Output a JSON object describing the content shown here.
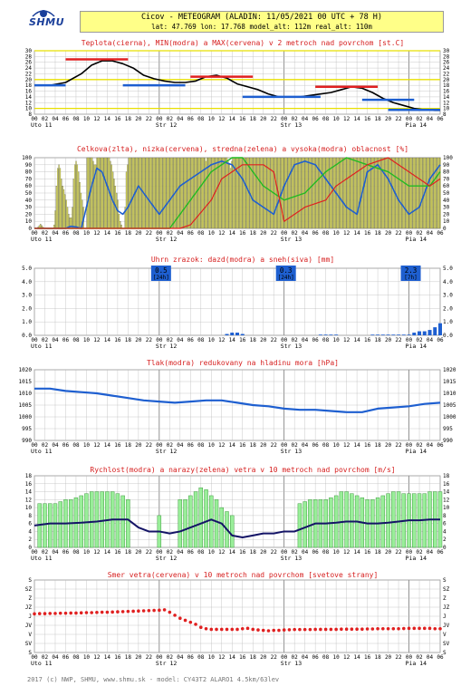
{
  "header": {
    "title": "Cicov - METEOGRAM (ALADIN: 11/05/2021 00 UTC + 78 H)",
    "subtitle": "lat: 47.769  lon: 17.768  model_alt: 112m  real_alt: 110m"
  },
  "logo_text": "SHMU",
  "footer": "2017 (c) NWP, SHMU, www.shmu.sk - model: CY43T2 ALARO1 4.5km/63lev",
  "time_axis": {
    "hour_labels": [
      "00",
      "02",
      "04",
      "06",
      "08",
      "10",
      "12",
      "14",
      "16",
      "18",
      "20",
      "22",
      "00",
      "02",
      "04",
      "06",
      "08",
      "10",
      "12",
      "14",
      "16",
      "18",
      "20",
      "22",
      "00",
      "02",
      "04",
      "06",
      "08",
      "10",
      "12",
      "14",
      "16",
      "18",
      "20",
      "22",
      "00",
      "02",
      "04",
      "06"
    ],
    "day_labels": [
      "Uto 11",
      "Str 12",
      "Str 13",
      "Pia 14"
    ],
    "day_start_hours": [
      0,
      24,
      48,
      72
    ]
  },
  "colors": {
    "blue": "#1e5fd0",
    "red": "#e02020",
    "green": "#22bb22",
    "yellow": "#e8e000",
    "bar_yellow": "#eeee55",
    "grid": "#bbbbbb",
    "navy": "#141466",
    "grey": "#888888"
  },
  "chart_data": [
    {
      "id": "temperature",
      "type": "line",
      "title": "Teplota(cierna), MIN(modra) a MAX(cervena) v 2 metroch nad povrchom [st.C]",
      "ylim": [
        8,
        30
      ],
      "yticks": [
        8,
        10,
        12,
        14,
        16,
        18,
        20,
        22,
        24,
        26,
        28,
        30
      ],
      "highlight_lines": [
        10,
        20,
        30
      ],
      "series": [
        {
          "role": "temperature",
          "x": [
            0,
            3,
            6,
            9,
            11,
            13,
            15,
            17,
            19,
            21,
            23,
            25,
            27,
            29,
            31,
            33,
            35,
            37,
            39,
            41,
            43,
            45,
            47,
            49,
            51,
            53,
            55,
            57,
            59,
            61,
            63,
            65,
            67,
            69,
            71,
            73,
            75,
            77,
            78
          ],
          "values": [
            18,
            18,
            19,
            22,
            25,
            26.5,
            26.5,
            25.5,
            24,
            21.5,
            20.3,
            19.5,
            19,
            19,
            19.5,
            21,
            21.5,
            20.5,
            18.5,
            17.5,
            16.5,
            15,
            14,
            14,
            14,
            14.5,
            15,
            15.5,
            16.5,
            17.5,
            17,
            15.5,
            13.5,
            12,
            11,
            10,
            9.5,
            9.3,
            9.3
          ]
        },
        {
          "role": "min",
          "segments": [
            [
              0,
              6,
              18
            ],
            [
              17,
              29,
              18
            ],
            [
              40,
              55,
              14
            ],
            [
              63,
              73,
              13
            ],
            [
              68,
              78,
              9.5
            ]
          ]
        },
        {
          "role": "max",
          "segments": [
            [
              6,
              18,
              27
            ],
            [
              30,
              42,
              21
            ],
            [
              54,
              66,
              17.5
            ]
          ]
        }
      ]
    },
    {
      "id": "cloudiness",
      "type": "bar",
      "title": "Celkova(zlta), nizka(cervena), stredna(zelena) a vysoka(modra) oblacnost [%]",
      "ylim": [
        0,
        100
      ],
      "yticks": [
        0,
        10,
        20,
        30,
        40,
        50,
        60,
        70,
        80,
        90,
        100
      ],
      "total_values": [
        0,
        0,
        0,
        2,
        4,
        6,
        4,
        2,
        0,
        0,
        0,
        0,
        0,
        0,
        0,
        0,
        5,
        25,
        60,
        85,
        90,
        85,
        70,
        60,
        55,
        48,
        40,
        30,
        20,
        15,
        15,
        30,
        70,
        90,
        95,
        90,
        80,
        65,
        50,
        40,
        30,
        0,
        0,
        100,
        100,
        100,
        100,
        100,
        95,
        90,
        90,
        100,
        100,
        100,
        100,
        100,
        100,
        100,
        100,
        100,
        100,
        100,
        95,
        90,
        80,
        70,
        60,
        50,
        40,
        20,
        10,
        5,
        0,
        0,
        30,
        80,
        90,
        100,
        100,
        100,
        100,
        100,
        100,
        100,
        100,
        100,
        100,
        100,
        100,
        100,
        100,
        100,
        100,
        100,
        100,
        100,
        100,
        100,
        100,
        100,
        100,
        100,
        100,
        100,
        100,
        100,
        100,
        100,
        100,
        100,
        100,
        100,
        100,
        100,
        100,
        100,
        100,
        100,
        100,
        100,
        100,
        100,
        100,
        100,
        100,
        100,
        100,
        100,
        100,
        100,
        100,
        100,
        100,
        100,
        100,
        100,
        100,
        100,
        100,
        100,
        95,
        100,
        100,
        100,
        100,
        100,
        100,
        100,
        100,
        100,
        100,
        100,
        100,
        100,
        100,
        100,
        100,
        100,
        95,
        90,
        85,
        95,
        100,
        100,
        100,
        100,
        100,
        100,
        100,
        100,
        100,
        100,
        100,
        100,
        100,
        100,
        100,
        100,
        100,
        100,
        100,
        100,
        100,
        100,
        100,
        100,
        100,
        100,
        100,
        100,
        100,
        100,
        100,
        100,
        100,
        100,
        100,
        100,
        100,
        100,
        100,
        100,
        100,
        100,
        100,
        100,
        100,
        100,
        100,
        100,
        100,
        100,
        100,
        100,
        100,
        100,
        100,
        100,
        100,
        100,
        100,
        100,
        100,
        100,
        100,
        100,
        100,
        100,
        100,
        100,
        100,
        100,
        100,
        100,
        100,
        100,
        100,
        100,
        100,
        100,
        100,
        100,
        100,
        100,
        100,
        100,
        100,
        100,
        100,
        100,
        100,
        100,
        100,
        100,
        100,
        100,
        100,
        100,
        100,
        100,
        100,
        100,
        100,
        100,
        100,
        100,
        100,
        100,
        100,
        100,
        100,
        100,
        100,
        100,
        100,
        100,
        100,
        100,
        100,
        100,
        100,
        100,
        100,
        100,
        100,
        100,
        100,
        100,
        100,
        100,
        100,
        100,
        100,
        100,
        100,
        100,
        100,
        100,
        100,
        100,
        100,
        100,
        100,
        100,
        100,
        100,
        100,
        100,
        100,
        100,
        100,
        100,
        100,
        100,
        100,
        100,
        100,
        100,
        100,
        100,
        100,
        100,
        100,
        100,
        100,
        100,
        100,
        100,
        100,
        100,
        100,
        100
      ],
      "series": [
        {
          "role": "high",
          "x": [
            0,
            6,
            7,
            8,
            9,
            10,
            11,
            12,
            13,
            14,
            15,
            16,
            17,
            18,
            20,
            22,
            24,
            26,
            28,
            30,
            32,
            34,
            36,
            38,
            40,
            42,
            44,
            46,
            48,
            50,
            52,
            54,
            56,
            58,
            60,
            62,
            64,
            66,
            68,
            70,
            72,
            74,
            76,
            78
          ],
          "values": [
            0,
            0,
            3,
            2,
            0,
            30,
            60,
            85,
            80,
            60,
            40,
            25,
            20,
            30,
            60,
            40,
            20,
            40,
            60,
            70,
            80,
            90,
            95,
            90,
            70,
            40,
            30,
            20,
            60,
            90,
            95,
            90,
            70,
            50,
            30,
            20,
            80,
            90,
            70,
            40,
            20,
            30,
            70,
            90
          ]
        },
        {
          "role": "middle",
          "x": [
            0,
            10,
            14,
            18,
            22,
            26,
            30,
            34,
            38,
            40,
            44,
            48,
            52,
            56,
            60,
            64,
            68,
            72,
            76,
            78
          ],
          "values": [
            0,
            0,
            0,
            0,
            0,
            0,
            40,
            80,
            100,
            100,
            60,
            40,
            50,
            80,
            100,
            90,
            80,
            60,
            60,
            80
          ]
        },
        {
          "role": "low",
          "x": [
            0,
            20,
            24,
            28,
            30,
            34,
            36,
            40,
            44,
            46,
            48,
            52,
            56,
            58,
            62,
            64,
            68,
            72,
            76,
            78
          ],
          "values": [
            0,
            0,
            0,
            0,
            5,
            40,
            70,
            90,
            90,
            80,
            10,
            30,
            40,
            60,
            80,
            90,
            100,
            80,
            60,
            70
          ]
        }
      ]
    },
    {
      "id": "precipitation",
      "type": "bar",
      "title": "Uhrn zrazok: dazd(modra) a sneh(siva) [mm]",
      "ylim": [
        0,
        5
      ],
      "yticks": [
        "0.0",
        "1.0",
        "2.0",
        "3.0",
        "4.0",
        "5.0"
      ],
      "rain_x": [
        37,
        38,
        39,
        40,
        55,
        56,
        57,
        58,
        65,
        66,
        67,
        68,
        69,
        70,
        71,
        72,
        73,
        74,
        75,
        76,
        77,
        78
      ],
      "rain_values": [
        0.1,
        0.2,
        0.2,
        0.1,
        0.05,
        0.05,
        0.05,
        0.05,
        0.05,
        0.05,
        0.05,
        0.05,
        0.05,
        0.05,
        0.05,
        0.05,
        0.2,
        0.3,
        0.3,
        0.4,
        0.6,
        0.9
      ],
      "sums": [
        {
          "hour": 24,
          "value": "0.5",
          "period": "[24h]"
        },
        {
          "hour": 48,
          "value": "0.3",
          "period": "[24h]"
        },
        {
          "hour": 72,
          "value": "2.3",
          "period": "[7h]"
        }
      ]
    },
    {
      "id": "pressure",
      "type": "line",
      "title": "Tlak(modra) redukovany na hladinu mora [hPa]",
      "ylim": [
        990,
        1020
      ],
      "yticks": [
        990,
        995,
        1000,
        1005,
        1010,
        1015,
        1020
      ],
      "x": [
        0,
        3,
        6,
        9,
        12,
        15,
        18,
        21,
        24,
        27,
        30,
        33,
        36,
        39,
        42,
        45,
        48,
        51,
        54,
        57,
        60,
        63,
        66,
        69,
        72,
        75,
        78
      ],
      "values": [
        1012,
        1012,
        1011,
        1010.5,
        1010,
        1009,
        1008,
        1007,
        1006.5,
        1006,
        1006.5,
        1007,
        1007,
        1006,
        1005,
        1004.5,
        1003.5,
        1003,
        1003,
        1002.5,
        1002,
        1002,
        1003.5,
        1004,
        1004.5,
        1005.5,
        1006
      ]
    },
    {
      "id": "wind_speed",
      "type": "bar",
      "title": "Rychlost(modra) a narazy(zelena) vetra v 10 metroch nad povrchom [m/s]",
      "ylim": [
        0,
        18
      ],
      "yticks": [
        0,
        2,
        4,
        6,
        8,
        10,
        12,
        14,
        16,
        18
      ],
      "gust_x": [
        1,
        2,
        3,
        4,
        5,
        6,
        7,
        8,
        9,
        10,
        11,
        12,
        13,
        14,
        15,
        16,
        17,
        18,
        24,
        28,
        29,
        30,
        31,
        32,
        33,
        34,
        35,
        36,
        37,
        38,
        51,
        52,
        53,
        54,
        55,
        56,
        57,
        58,
        59,
        60,
        61,
        62,
        63,
        64,
        65,
        66,
        67,
        68,
        69,
        70,
        71,
        72,
        73,
        74,
        75,
        76,
        77,
        78
      ],
      "gust_values": [
        11,
        11,
        11,
        11,
        11.5,
        12,
        12,
        12.5,
        13,
        13.5,
        14,
        14,
        14,
        14,
        14,
        13.5,
        13,
        12,
        8,
        12,
        12,
        13,
        14,
        15,
        14.5,
        13,
        12,
        10,
        9,
        8,
        11,
        11.5,
        12,
        12,
        12,
        12,
        12.5,
        13,
        14,
        14,
        13.5,
        13,
        12.5,
        12,
        12,
        12.5,
        13,
        13.5,
        14,
        14,
        13.5,
        13.5,
        13.5,
        13.5,
        13.5,
        14,
        14,
        14
      ],
      "speed_x": [
        0,
        3,
        6,
        9,
        12,
        15,
        18,
        20,
        22,
        24,
        26,
        28,
        30,
        32,
        34,
        36,
        38,
        40,
        42,
        44,
        46,
        48,
        50,
        52,
        54,
        56,
        58,
        60,
        62,
        64,
        66,
        68,
        70,
        72,
        74,
        76,
        78
      ],
      "speed_values": [
        5.5,
        6,
        6,
        6.2,
        6.5,
        7,
        7,
        5,
        4,
        4,
        3.5,
        4,
        5,
        6,
        7,
        6,
        3,
        2.5,
        3,
        3.5,
        3.5,
        4,
        4,
        5,
        6,
        6,
        6.2,
        6.5,
        6.5,
        6,
        6,
        6.2,
        6.5,
        6.8,
        6.8,
        7,
        7
      ]
    },
    {
      "id": "wind_direction",
      "type": "scatter",
      "title": "Smer vetra(cervena) v 10 metroch nad povrchom [svetove strany]",
      "ylim": [
        0,
        360
      ],
      "yticks": [
        "S",
        "SV",
        "V",
        "JV",
        "J",
        "JZ",
        "Z",
        "SZ",
        "S"
      ],
      "x": [
        0,
        1,
        2,
        3,
        4,
        5,
        6,
        7,
        8,
        9,
        10,
        11,
        12,
        13,
        14,
        15,
        16,
        17,
        18,
        19,
        20,
        21,
        22,
        23,
        24,
        25,
        26,
        27,
        28,
        29,
        30,
        31,
        32,
        33,
        34,
        35,
        36,
        37,
        38,
        39,
        40,
        41,
        42,
        43,
        44,
        45,
        46,
        47,
        48,
        49,
        50,
        51,
        52,
        53,
        54,
        55,
        56,
        57,
        58,
        59,
        60,
        61,
        62,
        63,
        64,
        65,
        66,
        67,
        68,
        69,
        70,
        71,
        72,
        73,
        74,
        75,
        76,
        77,
        78
      ],
      "values": [
        192,
        193,
        193,
        194,
        194,
        195,
        195,
        196,
        196,
        197,
        198,
        198,
        199,
        200,
        200,
        201,
        202,
        203,
        204,
        205,
        206,
        207,
        208,
        209,
        210,
        212,
        200,
        185,
        170,
        160,
        150,
        140,
        125,
        118,
        115,
        115,
        115,
        115,
        115,
        115,
        118,
        120,
        115,
        112,
        110,
        108,
        110,
        110,
        112,
        113,
        114,
        114,
        114,
        114,
        115,
        115,
        115,
        115,
        115,
        116,
        116,
        116,
        116,
        116,
        117,
        117,
        118,
        118,
        118,
        118,
        118,
        119,
        120,
        120,
        120,
        120,
        120,
        118,
        118
      ]
    }
  ]
}
